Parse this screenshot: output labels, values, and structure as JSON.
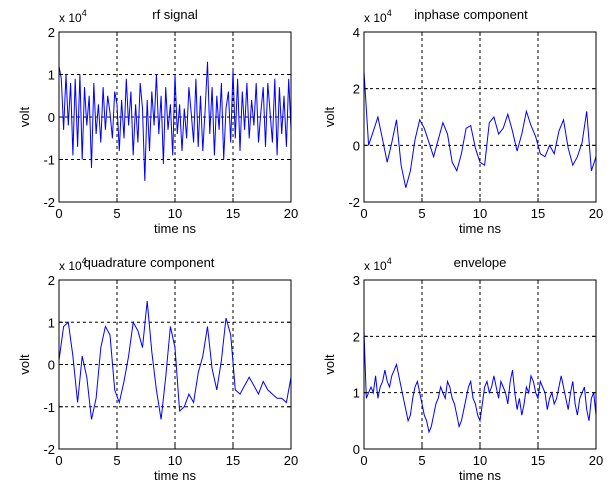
{
  "chart_data": [
    {
      "type": "line",
      "title": "rf signal",
      "xlabel": "time ns",
      "ylabel": "volt",
      "y_multiplier": {
        "base": "x 10",
        "exponent": "4"
      },
      "xlim": [
        0,
        20
      ],
      "ylim": [
        -2,
        2
      ],
      "xticks": [
        "0",
        "5",
        "10",
        "15",
        "20"
      ],
      "yticks": [
        "-2",
        "-1",
        "0",
        "1",
        "2"
      ],
      "grid": true,
      "color": "#0000ff",
      "series": [
        {
          "x": [
            0,
            0.2,
            0.4,
            0.6,
            0.8,
            1.0,
            1.2,
            1.4,
            1.6,
            1.8,
            2.0,
            2.2,
            2.4,
            2.6,
            2.8,
            3.0,
            3.2,
            3.4,
            3.6,
            3.8,
            4.0,
            4.2,
            4.4,
            4.6,
            4.8,
            5.0,
            5.2,
            5.4,
            5.6,
            5.8,
            6.0,
            6.2,
            6.4,
            6.6,
            6.8,
            7.0,
            7.2,
            7.4,
            7.6,
            7.8,
            8.0,
            8.2,
            8.4,
            8.6,
            8.8,
            9.0,
            9.2,
            9.4,
            9.6,
            9.8,
            10.0,
            10.2,
            10.4,
            10.6,
            10.8,
            11.0,
            11.2,
            11.4,
            11.6,
            11.8,
            12.0,
            12.2,
            12.4,
            12.6,
            12.8,
            13.0,
            13.2,
            13.4,
            13.6,
            13.8,
            14.0,
            14.2,
            14.4,
            14.6,
            14.8,
            15.0,
            15.2,
            15.4,
            15.6,
            15.8,
            16.0,
            16.2,
            16.4,
            16.6,
            16.8,
            17.0,
            17.2,
            17.4,
            17.6,
            17.8,
            18.0,
            18.2,
            18.4,
            18.6,
            18.8,
            19.0,
            19.2,
            19.4,
            19.6,
            19.8,
            20.0
          ],
          "y": [
            1.2,
            0.9,
            -0.3,
            1.0,
            -0.2,
            0.8,
            -0.9,
            0.9,
            -0.7,
            1.0,
            -1.0,
            0.7,
            -0.2,
            0.5,
            -1.2,
            0.8,
            -0.4,
            0.3,
            -0.6,
            0.7,
            -0.3,
            0.5,
            0.1,
            -0.5,
            0.6,
            0.3,
            -0.8,
            0.4,
            -0.5,
            0.9,
            -0.2,
            0.6,
            -0.9,
            0.3,
            -0.6,
            0.8,
            0.2,
            -1.5,
            0.4,
            -0.8,
            0.6,
            -0.2,
            1.0,
            -0.4,
            0.5,
            -1.1,
            0.7,
            -0.3,
            0.3,
            -0.9,
            1.0,
            -0.4,
            0.3,
            -0.8,
            0.2,
            -0.5,
            0.7,
            0.1,
            -0.6,
            0.9,
            -0.7,
            0.5,
            -0.8,
            0.2,
            1.3,
            -0.4,
            0.7,
            -0.9,
            0.5,
            -0.3,
            0.8,
            -1.0,
            0.2,
            0.6,
            -0.6,
            1.1,
            -0.5,
            0.9,
            -0.8,
            0.6,
            -0.3,
            0.8,
            -0.5,
            0.4,
            -0.2,
            0.8,
            -0.6,
            0.1,
            0.7,
            -0.7,
            0.8,
            0.1,
            -0.6,
            0.9,
            -0.9,
            0.7,
            -0.4,
            0.5,
            -0.7,
            0.9,
            -0.3
          ]
        }
      ]
    },
    {
      "type": "line",
      "title": "inphase component",
      "xlabel": "time ns",
      "ylabel": "volt",
      "y_multiplier": {
        "base": "x 10",
        "exponent": "4"
      },
      "xlim": [
        0,
        20
      ],
      "ylim": [
        -2,
        4
      ],
      "xticks": [
        "0",
        "5",
        "10",
        "15",
        "20"
      ],
      "yticks": [
        "-2",
        "0",
        "2",
        "4"
      ],
      "grid": true,
      "color": "#0000ff",
      "series": [
        {
          "x": [
            0,
            0.4,
            0.8,
            1.2,
            1.6,
            2.0,
            2.4,
            2.8,
            3.2,
            3.6,
            4.0,
            4.4,
            4.8,
            5.2,
            5.6,
            6.0,
            6.4,
            6.8,
            7.2,
            7.6,
            8.0,
            8.4,
            8.8,
            9.2,
            9.6,
            10.0,
            10.4,
            10.8,
            11.2,
            11.6,
            12.0,
            12.4,
            12.8,
            13.2,
            13.6,
            14.0,
            14.4,
            14.8,
            15.2,
            15.6,
            16.0,
            16.4,
            16.8,
            17.2,
            17.6,
            18.0,
            18.4,
            18.8,
            19.2,
            19.6,
            20.0
          ],
          "y": [
            2.6,
            0.0,
            0.5,
            1.0,
            0.2,
            -0.6,
            0.1,
            0.9,
            -0.7,
            -1.5,
            -0.9,
            0.2,
            0.9,
            0.6,
            0.1,
            -0.4,
            0.2,
            0.8,
            0.4,
            -0.6,
            -0.9,
            -0.3,
            0.6,
            0.7,
            -0.1,
            -0.6,
            -0.7,
            0.8,
            1.0,
            0.4,
            0.6,
            1.1,
            0.5,
            -0.2,
            0.4,
            1.2,
            0.7,
            0.3,
            -0.3,
            -0.4,
            0.0,
            -0.3,
            0.5,
            0.9,
            -0.1,
            -0.7,
            -0.4,
            0.1,
            1.2,
            -0.9,
            -0.4
          ]
        }
      ]
    },
    {
      "type": "line",
      "title": "quadrature component",
      "xlabel": "time ns",
      "ylabel": "volt",
      "y_multiplier": {
        "base": "x 10",
        "exponent": "4"
      },
      "xlim": [
        0,
        20
      ],
      "ylim": [
        -2,
        2
      ],
      "xticks": [
        "0",
        "5",
        "10",
        "15",
        "20"
      ],
      "yticks": [
        "-2",
        "-1",
        "0",
        "1",
        "2"
      ],
      "grid": true,
      "color": "#0000ff",
      "series": [
        {
          "x": [
            0,
            0.4,
            0.8,
            1.2,
            1.6,
            2.0,
            2.4,
            2.8,
            3.2,
            3.6,
            4.0,
            4.4,
            4.8,
            5.2,
            5.6,
            6.0,
            6.4,
            6.8,
            7.2,
            7.6,
            8.0,
            8.4,
            8.8,
            9.2,
            9.6,
            10.0,
            10.4,
            10.8,
            11.2,
            11.6,
            12.0,
            12.4,
            12.8,
            13.2,
            13.6,
            14.0,
            14.4,
            14.8,
            15.2,
            15.6,
            16.0,
            16.4,
            16.8,
            17.2,
            17.6,
            18.0,
            18.4,
            18.8,
            19.2,
            19.6,
            20.0
          ],
          "y": [
            0.1,
            0.9,
            1.0,
            0.2,
            -0.9,
            0.2,
            -0.3,
            -1.3,
            -0.8,
            0.4,
            0.9,
            0.7,
            -0.6,
            -0.9,
            -0.4,
            0.2,
            1.0,
            0.8,
            0.4,
            1.5,
            0.3,
            -0.6,
            -1.3,
            -0.3,
            0.9,
            0.4,
            -1.1,
            -1.0,
            -0.7,
            -0.9,
            -0.2,
            0.2,
            0.9,
            -0.1,
            -0.6,
            0.1,
            1.1,
            0.7,
            -0.6,
            -0.7,
            -0.5,
            -0.3,
            -0.5,
            -0.7,
            -0.4,
            -0.6,
            -0.7,
            -0.8,
            -0.8,
            -0.9,
            -0.3
          ]
        }
      ]
    },
    {
      "type": "line",
      "title": "envelope",
      "xlabel": "time ns",
      "ylabel": "volt",
      "y_multiplier": {
        "base": "x 10",
        "exponent": "4"
      },
      "xlim": [
        0,
        20
      ],
      "ylim": [
        0,
        3
      ],
      "xticks": [
        "0",
        "5",
        "10",
        "15",
        "20"
      ],
      "yticks": [
        "0",
        "1",
        "2",
        "3"
      ],
      "grid": true,
      "color": "#0000ff",
      "series": [
        {
          "x": [
            0,
            0.2,
            0.4,
            0.6,
            0.8,
            1.0,
            1.2,
            1.4,
            1.6,
            1.8,
            2.0,
            2.2,
            2.4,
            2.6,
            2.8,
            3.0,
            3.2,
            3.4,
            3.6,
            3.8,
            4.0,
            4.2,
            4.4,
            4.6,
            4.8,
            5.0,
            5.2,
            5.4,
            5.6,
            5.8,
            6.0,
            6.2,
            6.4,
            6.6,
            6.8,
            7.0,
            7.2,
            7.4,
            7.6,
            7.8,
            8.0,
            8.2,
            8.4,
            8.6,
            8.8,
            9.0,
            9.2,
            9.4,
            9.6,
            9.8,
            10.0,
            10.2,
            10.4,
            10.6,
            10.8,
            11.0,
            11.2,
            11.4,
            11.6,
            11.8,
            12.0,
            12.2,
            12.4,
            12.6,
            12.8,
            13.0,
            13.2,
            13.4,
            13.6,
            13.8,
            14.0,
            14.2,
            14.4,
            14.6,
            14.8,
            15.0,
            15.2,
            15.4,
            15.6,
            15.8,
            16.0,
            16.2,
            16.4,
            16.6,
            16.8,
            17.0,
            17.2,
            17.4,
            17.6,
            17.8,
            18.0,
            18.2,
            18.4,
            18.6,
            18.8,
            19.0,
            19.2,
            19.4,
            19.6,
            19.8,
            20.0
          ],
          "y": [
            2.1,
            0.9,
            1.0,
            1.1,
            1.0,
            1.3,
            0.9,
            1.1,
            1.2,
            1.4,
            1.2,
            1.1,
            1.3,
            1.4,
            1.5,
            1.3,
            1.1,
            0.9,
            0.7,
            0.5,
            0.6,
            0.9,
            1.1,
            1.2,
            1.0,
            0.8,
            0.6,
            0.5,
            0.3,
            0.4,
            0.6,
            0.8,
            0.9,
            1.1,
            1.0,
            0.9,
            1.2,
            1.1,
            0.9,
            0.8,
            0.6,
            0.4,
            0.5,
            0.7,
            0.9,
            1.1,
            1.2,
            0.9,
            0.8,
            0.6,
            0.5,
            0.8,
            1.1,
            1.2,
            1.0,
            1.1,
            1.3,
            1.1,
            0.9,
            1.2,
            1.1,
            1.0,
            0.8,
            1.2,
            1.4,
            1.0,
            0.7,
            0.9,
            0.6,
            0.8,
            1.1,
            1.0,
            1.3,
            1.2,
            1.0,
            0.9,
            1.2,
            1.1,
            1.0,
            0.7,
            0.9,
            1.0,
            0.8,
            0.9,
            1.1,
            1.3,
            1.1,
            0.9,
            0.7,
            1.0,
            1.2,
            0.8,
            0.6,
            0.9,
            1.0,
            1.1,
            0.7,
            0.5,
            0.9,
            1.0,
            0.6
          ]
        }
      ]
    }
  ]
}
